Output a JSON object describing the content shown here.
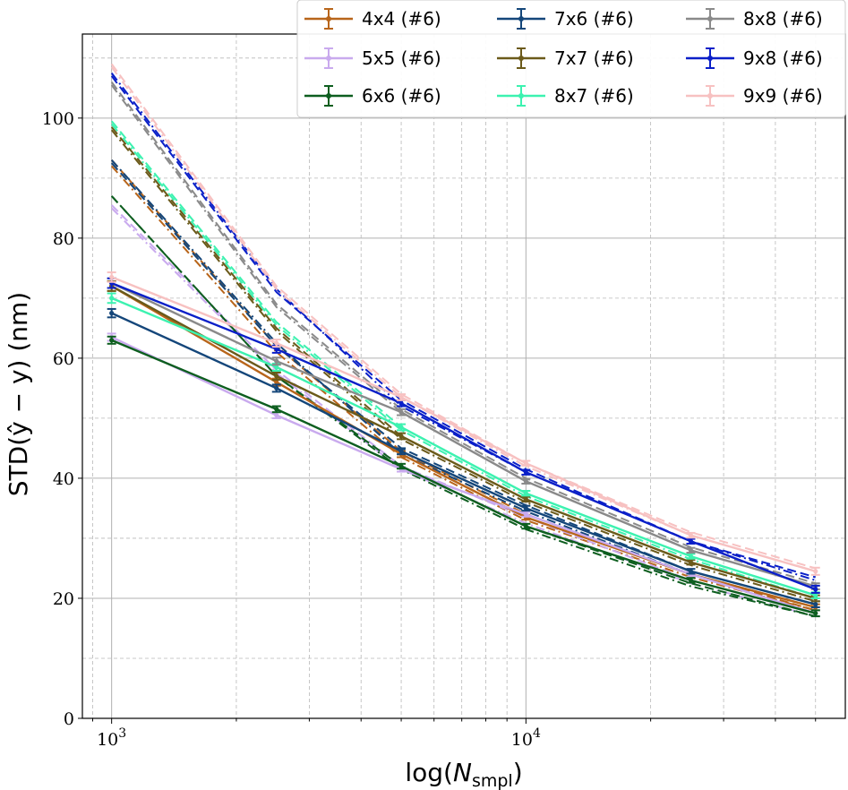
{
  "chart_data": {
    "type": "line",
    "xlabel": "log(N_smpl)",
    "ylabel": "STD(ŷ − y) (nm)",
    "xscale": "log",
    "xlim": [
      850,
      59000
    ],
    "ylim": [
      0,
      114
    ],
    "x_tick_labels": [
      "10^3",
      "10^4"
    ],
    "x_ticks": [
      1000,
      10000
    ],
    "y_ticks": [
      0,
      20,
      40,
      60,
      80,
      100
    ],
    "y_tick_labels": [
      "0",
      "20",
      "40",
      "60",
      "80",
      "100"
    ],
    "grid": true,
    "legend_position": "top-right",
    "x": [
      1000,
      2500,
      5000,
      10000,
      25000,
      50000
    ],
    "series": [
      {
        "name": "4x4 (#6)",
        "color": "#b8651a",
        "solid": [
          72.0,
          56.0,
          44.0,
          33.5,
          24.0,
          18.5
        ],
        "err": [
          0.8,
          0.6,
          0.5,
          0.4,
          0.4,
          0.5
        ],
        "dashed": [
          93.0,
          62.0,
          44.5,
          34.0,
          24.0,
          18.0
        ],
        "dashdot": [
          92.0,
          61.0,
          43.5,
          33.0,
          23.5,
          18.0
        ]
      },
      {
        "name": "5x5 (#6)",
        "color": "#c9aaee",
        "solid": [
          63.5,
          50.5,
          41.5,
          34.0,
          24.0,
          17.5
        ],
        "err": [
          0.6,
          0.5,
          0.4,
          0.4,
          0.4,
          0.5
        ],
        "dashed": [
          85.5,
          58.0,
          42.0,
          33.5,
          23.0,
          17.5
        ],
        "dashdot": [
          85.0,
          57.5,
          41.5,
          32.5,
          22.5,
          17.0
        ]
      },
      {
        "name": "6x6 (#6)",
        "color": "#0d5e1f",
        "solid": [
          63.0,
          51.5,
          42.0,
          32.0,
          23.0,
          17.5
        ],
        "err": [
          0.6,
          0.5,
          0.4,
          0.4,
          0.4,
          0.5
        ],
        "dashed": [
          87.0,
          57.0,
          42.0,
          32.0,
          22.5,
          17.0
        ],
        "dashdot": [
          87.0,
          57.0,
          41.5,
          31.5,
          22.0,
          17.0
        ]
      },
      {
        "name": "7x6 (#6)",
        "color": "#14467a",
        "solid": [
          67.5,
          55.0,
          44.5,
          35.0,
          24.5,
          19.0
        ],
        "err": [
          0.7,
          0.6,
          0.5,
          0.4,
          0.4,
          0.5
        ],
        "dashed": [
          92.5,
          62.0,
          45.0,
          35.5,
          24.5,
          19.0
        ],
        "dashdot": [
          93.0,
          62.5,
          44.0,
          34.5,
          24.0,
          18.5
        ]
      },
      {
        "name": "7x7 (#6)",
        "color": "#6b5a1a",
        "solid": [
          72.0,
          57.0,
          47.0,
          36.5,
          26.0,
          20.0
        ],
        "err": [
          0.8,
          0.6,
          0.5,
          0.4,
          0.4,
          0.5
        ],
        "dashed": [
          98.5,
          65.0,
          47.0,
          36.5,
          26.0,
          20.0
        ],
        "dashdot": [
          98.0,
          64.5,
          46.5,
          36.0,
          25.5,
          19.5
        ]
      },
      {
        "name": "8x7 (#6)",
        "color": "#3cf2b0",
        "solid": [
          70.0,
          58.5,
          48.5,
          37.5,
          27.0,
          20.5
        ],
        "err": [
          0.8,
          0.6,
          0.5,
          0.4,
          0.4,
          0.5
        ],
        "dashed": [
          99.5,
          66.0,
          48.5,
          37.5,
          27.0,
          20.5
        ],
        "dashdot": [
          99.0,
          65.5,
          48.0,
          37.0,
          26.5,
          20.0
        ]
      },
      {
        "name": "8x8 (#6)",
        "color": "#8a8a8a",
        "solid": [
          72.5,
          59.5,
          51.0,
          39.5,
          28.0,
          22.0
        ],
        "err": [
          0.8,
          0.6,
          0.5,
          0.4,
          0.4,
          0.5
        ],
        "dashed": [
          106.0,
          69.0,
          51.5,
          40.0,
          28.5,
          22.5
        ],
        "dashdot": [
          105.5,
          68.5,
          51.0,
          39.5,
          28.0,
          22.0
        ]
      },
      {
        "name": "9x8 (#6)",
        "color": "#0a1fc8",
        "solid": [
          72.5,
          61.5,
          52.5,
          41.0,
          29.5,
          21.5
        ],
        "err": [
          0.8,
          0.6,
          0.5,
          0.4,
          0.4,
          0.6
        ],
        "dashed": [
          107.0,
          71.0,
          53.0,
          41.5,
          29.5,
          23.5
        ],
        "dashdot": [
          107.5,
          71.5,
          52.0,
          41.0,
          29.5,
          23.0
        ]
      },
      {
        "name": "9x9 (#6)",
        "color": "#f7c1c1",
        "solid": [
          73.5,
          62.5,
          53.5,
          42.5,
          30.5,
          24.5
        ],
        "err": [
          0.8,
          0.6,
          0.5,
          0.4,
          0.4,
          0.6
        ],
        "dashed": [
          109.0,
          72.0,
          54.0,
          42.5,
          31.0,
          25.0
        ],
        "dashdot": [
          108.5,
          71.5,
          53.5,
          42.0,
          30.5,
          24.5
        ]
      }
    ]
  }
}
